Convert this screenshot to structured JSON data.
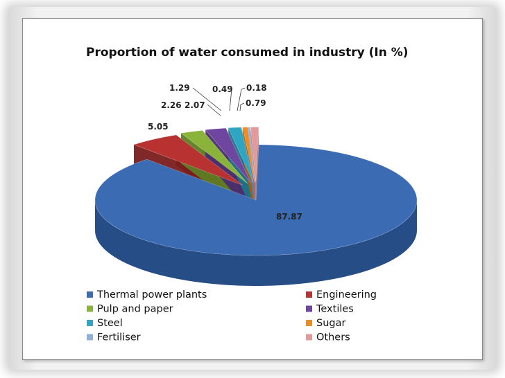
{
  "chart_data": {
    "type": "pie",
    "title": "Proportion of water consumed in industry (In %)",
    "slices": [
      {
        "label": "Thermal power plants",
        "value": 87.87,
        "value_label": "87.87",
        "color": "#3a6bb3",
        "side": "#274d87"
      },
      {
        "label": "Engineering",
        "value": 5.05,
        "value_label": "5.05",
        "color": "#b83232",
        "side": "#7a1c1c"
      },
      {
        "label": "Pulp and paper",
        "value": 2.26,
        "value_label": "2.26",
        "color": "#8ab33a",
        "side": "#5e7d22"
      },
      {
        "label": "Textiles",
        "value": 2.07,
        "value_label": "2.07",
        "color": "#6e46a0",
        "side": "#4a2d70"
      },
      {
        "label": "Steel",
        "value": 1.29,
        "value_label": "1.29",
        "color": "#2ea6c3",
        "side": "#1d7388"
      },
      {
        "label": "Sugar",
        "value": 0.49,
        "value_label": "0.49",
        "color": "#f08b22",
        "side": "#a85d12"
      },
      {
        "label": "Fertiliser",
        "value": 0.18,
        "value_label": "0.18",
        "color": "#8fb0dc",
        "side": "#5f7fa8"
      },
      {
        "label": "Others",
        "value": 0.79,
        "value_label": "0.79",
        "color": "#e49a9a",
        "side": "#a86a6a"
      }
    ],
    "legend_placement": "bottom"
  }
}
